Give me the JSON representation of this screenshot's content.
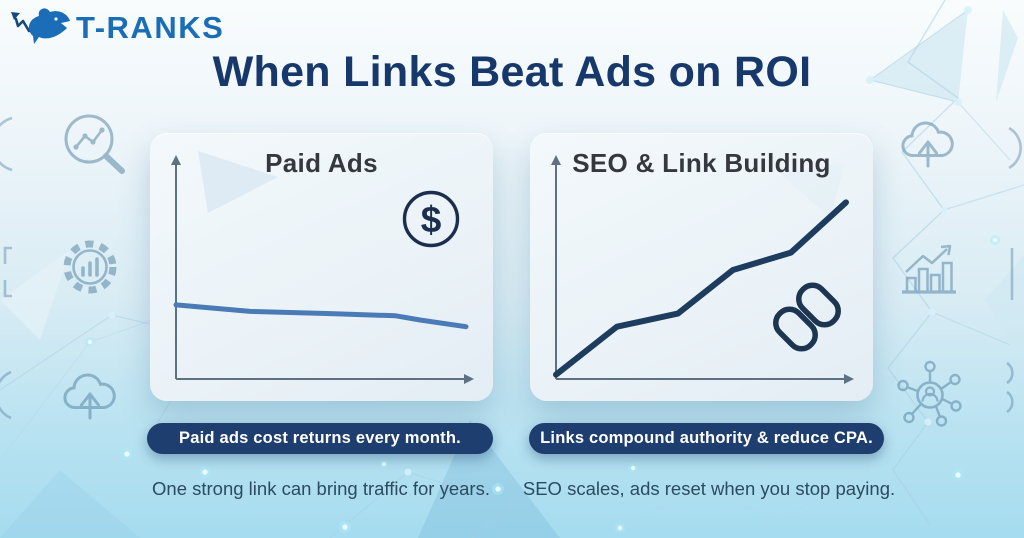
{
  "brand": {
    "name": "T-RANKS"
  },
  "header": {
    "title": "When Links Beat Ads on ROI"
  },
  "panels": [
    {
      "title": "Paid Ads",
      "icon": "dollar-circle-icon",
      "badge": "Paid ads cost returns every month.",
      "caption": "One strong link can bring traffic for years."
    },
    {
      "title": "SEO & Link Building",
      "icon": "chain-link-icon",
      "badge": "Links compound authority & reduce CPA.",
      "caption": "SEO scales, ads reset when you stop paying."
    }
  ],
  "chart_data": [
    {
      "type": "line",
      "title": "Paid Ads",
      "x_pct": [
        0,
        25.6,
        53.3,
        75.8,
        84.4,
        100
      ],
      "values": [
        34,
        31,
        30,
        29,
        27,
        24
      ],
      "ylim": [
        0,
        100
      ],
      "xlabel": "",
      "ylabel": "",
      "grid": false,
      "line_color": "#4a7bb7",
      "line_width": 5
    },
    {
      "type": "line",
      "title": "SEO & Link Building",
      "x_pct": [
        0,
        21,
        42,
        61,
        81,
        100
      ],
      "values": [
        2,
        24,
        30,
        50,
        58,
        81
      ],
      "ylim": [
        0,
        100
      ],
      "xlabel": "",
      "ylabel": "",
      "grid": false,
      "line_color": "#1d3c5e",
      "line_width": 6
    }
  ],
  "decorative_icons": [
    "magnifier-chart-icon",
    "gear-chart-icon",
    "cloud-upload-icon",
    "cloud-upload-icon",
    "bar-chart-growth-icon",
    "network-user-icon"
  ],
  "colors": {
    "title_navy": "#17386b",
    "badge_bg": "#1d3e6e",
    "badge_text": "#ffffff",
    "brand_blue": "#1a6db6",
    "card_bg": "#edf4f8",
    "card_title": "#35393f",
    "caption_text": "#2c4b60",
    "paid_line": "#4a7bb7",
    "seo_line": "#1d3c5e",
    "axis_gray": "#5d7183",
    "bg_top": "#f8fcfd",
    "bg_bottom": "#a5dcef"
  }
}
